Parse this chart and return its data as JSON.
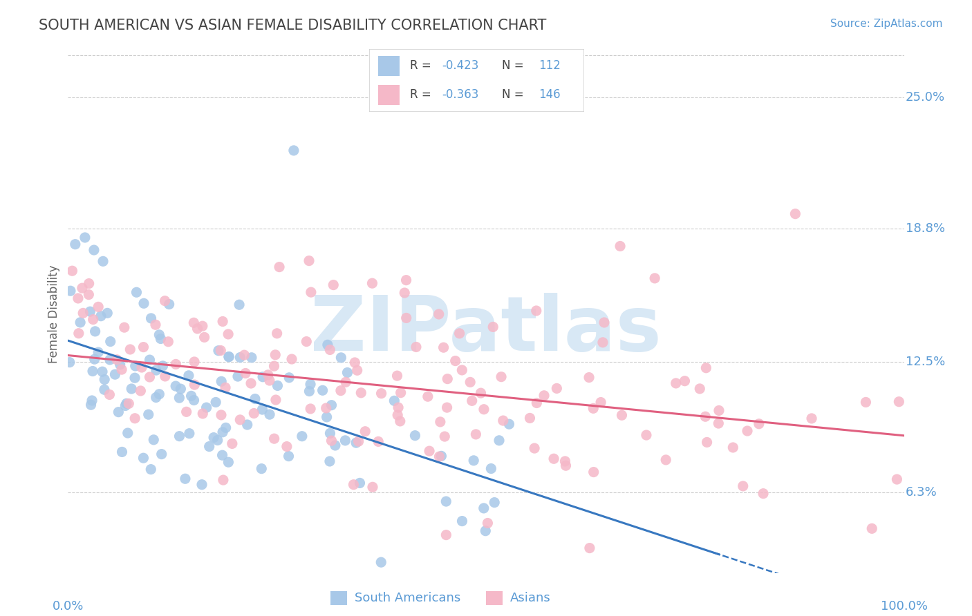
{
  "title": "SOUTH AMERICAN VS ASIAN FEMALE DISABILITY CORRELATION CHART",
  "source": "Source: ZipAtlas.com",
  "ylabel": "Female Disability",
  "ytick_labels": [
    "6.3%",
    "12.5%",
    "18.8%",
    "25.0%"
  ],
  "ytick_values": [
    0.063,
    0.125,
    0.188,
    0.25
  ],
  "xmin": 0.0,
  "xmax": 1.0,
  "ymin": 0.025,
  "ymax": 0.27,
  "blue_R": -0.423,
  "blue_N": 112,
  "pink_R": -0.363,
  "pink_N": 146,
  "blue_color": "#a8c8e8",
  "pink_color": "#f5b8c8",
  "blue_line_color": "#3878c0",
  "pink_line_color": "#e06080",
  "blue_label": "South Americans",
  "pink_label": "Asians",
  "title_color": "#444444",
  "axis_label_color": "#5b9bd5",
  "grid_color": "#cccccc",
  "watermark": "ZIPatlas",
  "watermark_color": "#d8e8f5",
  "legend_R_color": "#444444",
  "legend_val_color": "#5b9bd5"
}
